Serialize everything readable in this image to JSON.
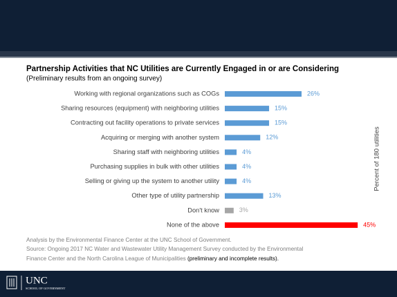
{
  "chart_data": {
    "type": "bar",
    "orientation": "horizontal",
    "title": "Partnership Activities that NC Utilities are Currently Engaged in or are Considering",
    "subtitle": "(Preliminary results from an ongoing survey)",
    "axis_label": "Percent of 180 utilities",
    "categories": [
      "Working with regional organizations such as COGs",
      "Sharing resources (equipment) with neighboring utilities",
      "Contracting out facility operations to private services",
      "Acquiring or merging with another system",
      "Sharing staff with neighboring utilities",
      "Purchasing supplies in bulk with other utilities",
      "Selling or giving up the system to another utility",
      "Other type of utility partnership",
      "Don't know",
      "None of the above"
    ],
    "values": [
      26,
      15,
      15,
      12,
      4,
      4,
      4,
      13,
      3,
      45
    ],
    "value_labels": [
      "26%",
      "15%",
      "15%",
      "12%",
      "4%",
      "4%",
      "4%",
      "13%",
      "3%",
      "45%"
    ],
    "colors": [
      "#5b9bd5",
      "#5b9bd5",
      "#5b9bd5",
      "#5b9bd5",
      "#5b9bd5",
      "#5b9bd5",
      "#5b9bd5",
      "#5b9bd5",
      "#a6a6a6",
      "#ff0000"
    ],
    "notes": [
      "Analysis by the Environmental Finance Center at the UNC School of Government.",
      "Source: Ongoing 2017 NC Water and Wastewater Utility Management Survey conducted by the Environmental",
      "Finance Center and the North Carolina League of Municipalities"
    ],
    "note_emphasis": "(preliminary and incomplete results)."
  },
  "footer": {
    "logo": "UNC",
    "school": "SCHOOL OF GOVERNMENT"
  }
}
